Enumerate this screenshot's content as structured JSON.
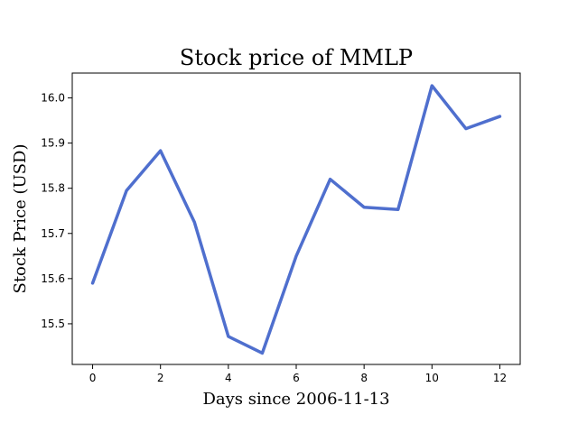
{
  "chart_data": {
    "type": "line",
    "title": "Stock price of MMLP",
    "xlabel": "Days since 2006-11-13",
    "ylabel": "Stock Price (USD)",
    "x": [
      0,
      1,
      2,
      3,
      4,
      5,
      6,
      7,
      8,
      9,
      10,
      11,
      12
    ],
    "series": [
      {
        "values": [
          15.59,
          15.795,
          15.883,
          15.725,
          15.472,
          15.435,
          15.65,
          15.82,
          15.758,
          15.753,
          16.027,
          15.932,
          15.959
        ],
        "color": "#4f6fce"
      }
    ],
    "xlim": [
      -0.6,
      12.6
    ],
    "ylim": [
      15.41,
      16.055
    ],
    "xticks": [
      0,
      2,
      4,
      6,
      8,
      10,
      12
    ],
    "yticks": [
      15.5,
      15.6,
      15.7,
      15.8,
      15.9,
      16.0
    ],
    "ytick_labels": [
      "15.5",
      "15.6",
      "15.7",
      "15.8",
      "15.9",
      "16.0"
    ],
    "grid": false,
    "legend": "none"
  }
}
